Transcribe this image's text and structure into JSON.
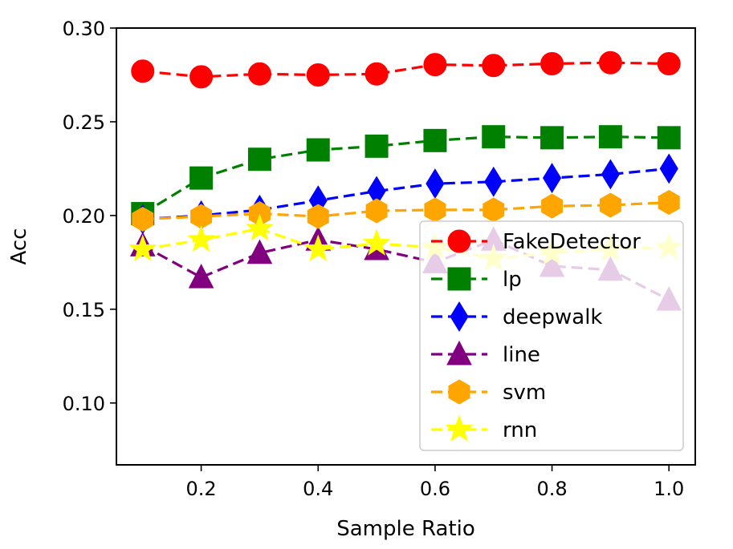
{
  "chart_data": {
    "type": "line",
    "title": "",
    "xlabel": "Sample Ratio",
    "ylabel": "Acc",
    "x": [
      0.1,
      0.2,
      0.3,
      0.4,
      0.5,
      0.6,
      0.7,
      0.8,
      0.9,
      1.0
    ],
    "xlim": [
      0.055,
      1.045
    ],
    "ylim": [
      0.067,
      0.3
    ],
    "xticks": [
      0.2,
      0.4,
      0.6,
      0.8,
      1.0
    ],
    "xtick_labels": [
      "0.2",
      "0.4",
      "0.6",
      "0.8",
      "1.0"
    ],
    "yticks": [
      0.1,
      0.15,
      0.2,
      0.25,
      0.3
    ],
    "ytick_labels": [
      "0.10",
      "0.15",
      "0.20",
      "0.25",
      "0.30"
    ],
    "grid": false,
    "legend_position": "lower-right",
    "series": [
      {
        "name": "FakeDetector",
        "color": "#ff0000",
        "marker": "circle",
        "values": [
          0.277,
          0.274,
          0.2755,
          0.275,
          0.2755,
          0.2805,
          0.28,
          0.281,
          0.2815,
          0.281
        ]
      },
      {
        "name": "lp",
        "color": "#008000",
        "marker": "square",
        "values": [
          0.201,
          0.22,
          0.23,
          0.235,
          0.237,
          0.24,
          0.242,
          0.2415,
          0.242,
          0.2415
        ]
      },
      {
        "name": "deepwalk",
        "color": "#0000ff",
        "marker": "diamond",
        "values": [
          0.198,
          0.2,
          0.203,
          0.208,
          0.213,
          0.217,
          0.218,
          0.22,
          0.222,
          0.225
        ]
      },
      {
        "name": "line",
        "color": "#800080",
        "marker": "triangle",
        "values": [
          0.184,
          0.167,
          0.18,
          0.187,
          0.182,
          0.175,
          0.187,
          0.173,
          0.171,
          0.155
        ]
      },
      {
        "name": "svm",
        "color": "#ffa500",
        "marker": "hexagon",
        "values": [
          0.198,
          0.1995,
          0.201,
          0.1995,
          0.2025,
          0.203,
          0.203,
          0.205,
          0.2055,
          0.207
        ]
      },
      {
        "name": "rnn",
        "color": "#ffff00",
        "marker": "star",
        "values": [
          0.182,
          0.187,
          0.193,
          0.182,
          0.185,
          0.183,
          0.177,
          0.18,
          0.182,
          0.183
        ]
      }
    ]
  }
}
